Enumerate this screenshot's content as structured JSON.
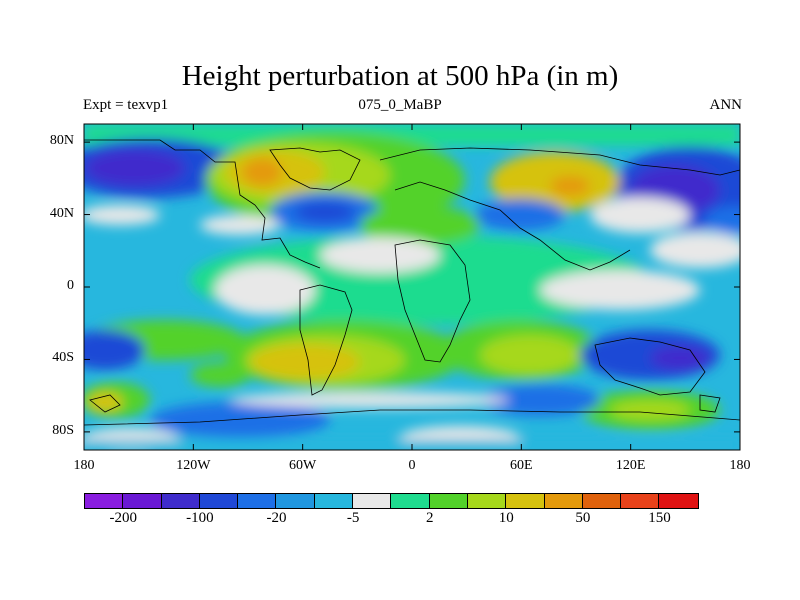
{
  "header": {
    "title": "Height perturbation at 500 hPa (in m)",
    "left": "Expt = texvp1",
    "center": "075_0_MaBP",
    "right": "ANN"
  },
  "axes": {
    "lat_ticks": [
      {
        "label": "80N",
        "lat": 80
      },
      {
        "label": "40N",
        "lat": 40
      },
      {
        "label": "0",
        "lat": 0
      },
      {
        "label": "40S",
        "lat": -40
      },
      {
        "label": "80S",
        "lat": -80
      }
    ],
    "lon_ticks": [
      {
        "label": "180",
        "lon": -180
      },
      {
        "label": "120W",
        "lon": -120
      },
      {
        "label": "60W",
        "lon": -60
      },
      {
        "label": "0",
        "lon": 0
      },
      {
        "label": "60E",
        "lon": 60
      },
      {
        "label": "120E",
        "lon": 120
      },
      {
        "label": "180",
        "lon": 180
      }
    ],
    "lon_range": [
      -180,
      180
    ],
    "lat_range": [
      -90,
      90
    ]
  },
  "colorbar": {
    "colors": [
      "#8a1de0",
      "#6a19d4",
      "#3f2ccc",
      "#1f48d6",
      "#1d6fe6",
      "#2097e0",
      "#27b7de",
      "#e8e8e8",
      "#1fdc8f",
      "#52d22a",
      "#a6d81b",
      "#d6c20e",
      "#e49a0c",
      "#e0620c",
      "#e8421a",
      "#e01212"
    ],
    "labels": [
      {
        "text": "-200",
        "boundary": 1
      },
      {
        "text": "-100",
        "boundary": 3
      },
      {
        "text": "-20",
        "boundary": 5
      },
      {
        "text": "-5",
        "boundary": 7
      },
      {
        "text": "2",
        "boundary": 9
      },
      {
        "text": "10",
        "boundary": 11
      },
      {
        "text": "50",
        "boundary": 13
      },
      {
        "text": "150",
        "boundary": 15
      }
    ]
  }
}
